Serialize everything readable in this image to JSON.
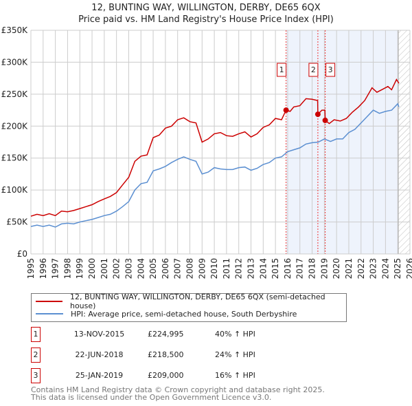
{
  "chart_data": {
    "type": "line",
    "title": "12, BUNTING WAY, WILLINGTON, DERBY, DE65 6QX",
    "subtitle": "Price paid vs. HM Land Registry's House Price Index (HPI)",
    "xlabel": "",
    "ylabel": "",
    "xlim": [
      1995,
      2026
    ],
    "ylim": [
      0,
      350000
    ],
    "yticks": [
      0,
      50000,
      100000,
      150000,
      200000,
      250000,
      300000,
      350000
    ],
    "ytick_labels": [
      "£0",
      "£50K",
      "£100K",
      "£150K",
      "£200K",
      "£250K",
      "£300K",
      "£350K"
    ],
    "xticks": [
      "1995",
      "1996",
      "1997",
      "1998",
      "1999",
      "2000",
      "2001",
      "2002",
      "2003",
      "2004",
      "2005",
      "2006",
      "2007",
      "2008",
      "2009",
      "2010",
      "2011",
      "2012",
      "2013",
      "2014",
      "2015",
      "2016",
      "2017",
      "2018",
      "2019",
      "2020",
      "2021",
      "2022",
      "2023",
      "2024",
      "2025",
      "2026"
    ],
    "grid": true,
    "shaded_range": [
      2015.87,
      2025.05
    ],
    "hatched_range": [
      2025.05,
      2026
    ],
    "series": [
      {
        "name": "12, BUNTING WAY, WILLINGTON, DERBY, DE65 6QX (semi-detached house)",
        "color": "#cc0000",
        "x": [
          1995,
          1995.5,
          1996,
          1996.5,
          1997,
          1997.5,
          1998,
          1998.5,
          1999,
          1999.5,
          2000,
          2000.5,
          2001,
          2001.5,
          2002,
          2002.5,
          2003,
          2003.5,
          2004,
          2004.5,
          2005,
          2005.5,
          2006,
          2006.5,
          2007,
          2007.5,
          2008,
          2008.5,
          2009,
          2009.5,
          2010,
          2010.5,
          2011,
          2011.5,
          2012,
          2012.5,
          2013,
          2013.5,
          2014,
          2014.5,
          2015,
          2015.5,
          2015.87,
          2016.2,
          2016.5,
          2017,
          2017.5,
          2018,
          2018.45,
          2018.47,
          2018.8,
          2019.05,
          2019.07,
          2019.4,
          2019.8,
          2020.3,
          2020.8,
          2021.3,
          2021.8,
          2022.3,
          2022.9,
          2023.3,
          2023.8,
          2024.2,
          2024.5,
          2024.9,
          2025.1
        ],
        "y": [
          59000,
          62000,
          60000,
          63000,
          60000,
          67000,
          66000,
          68000,
          71000,
          74000,
          77000,
          82000,
          86000,
          90000,
          96000,
          108000,
          120000,
          145000,
          153000,
          155000,
          182000,
          186000,
          197000,
          200000,
          210000,
          213000,
          207000,
          205000,
          175000,
          180000,
          188000,
          190000,
          185000,
          184000,
          188000,
          191000,
          183000,
          188000,
          198000,
          202000,
          212000,
          210000,
          224995,
          223000,
          230000,
          232000,
          243000,
          242000,
          240000,
          218500,
          225000,
          225000,
          209000,
          204000,
          210000,
          208000,
          212000,
          222000,
          230000,
          240000,
          260000,
          253000,
          258000,
          262000,
          257000,
          273000,
          267000
        ]
      },
      {
        "name": "HPI: Average price, semi-detached house, South Derbyshire",
        "color": "#5b8fd1",
        "x": [
          1995,
          1995.5,
          1996,
          1996.5,
          1997,
          1997.5,
          1998,
          1998.5,
          1999,
          1999.5,
          2000,
          2000.5,
          2001,
          2001.5,
          2002,
          2002.5,
          2003,
          2003.5,
          2004,
          2004.5,
          2005,
          2005.5,
          2006,
          2006.5,
          2007,
          2007.5,
          2008,
          2008.5,
          2009,
          2009.5,
          2010,
          2010.5,
          2011,
          2011.5,
          2012,
          2012.5,
          2013,
          2013.5,
          2014,
          2014.5,
          2015,
          2015.5,
          2016,
          2016.5,
          2017,
          2017.5,
          2018,
          2018.5,
          2019,
          2019.5,
          2020,
          2020.5,
          2021,
          2021.5,
          2022,
          2022.5,
          2023,
          2023.5,
          2024,
          2024.5,
          2025,
          2025.1
        ],
        "y": [
          43000,
          45000,
          43000,
          45000,
          42000,
          47000,
          48000,
          47000,
          50000,
          52000,
          54000,
          57000,
          60000,
          62000,
          67000,
          74000,
          82000,
          100000,
          110000,
          112000,
          130000,
          133000,
          137000,
          143000,
          148000,
          152000,
          148000,
          145000,
          125000,
          128000,
          135000,
          133000,
          132000,
          132000,
          135000,
          136000,
          131000,
          134000,
          140000,
          143000,
          150000,
          152000,
          160000,
          163000,
          166000,
          172000,
          174000,
          175000,
          180000,
          176000,
          180000,
          180000,
          190000,
          195000,
          205000,
          215000,
          225000,
          220000,
          223000,
          225000,
          235000,
          230000
        ]
      }
    ],
    "annotations": [
      {
        "label": "1",
        "x": 2015.87,
        "y": 224995
      },
      {
        "label": "2",
        "x": 2018.47,
        "y": 218500
      },
      {
        "label": "3",
        "x": 2019.07,
        "y": 209000
      }
    ]
  },
  "title_line1": "12, BUNTING WAY, WILLINGTON, DERBY, DE65 6QX",
  "title_line2": "Price paid vs. HM Land Registry's House Price Index (HPI)",
  "legend": [
    "12, BUNTING WAY, WILLINGTON, DERBY, DE65 6QX (semi-detached house)",
    "HPI: Average price, semi-detached house, South Derbyshire"
  ],
  "transactions": [
    {
      "num": "1",
      "date": "13-NOV-2015",
      "price": "£224,995",
      "hpi": "40% ↑ HPI"
    },
    {
      "num": "2",
      "date": "22-JUN-2018",
      "price": "£218,500",
      "hpi": "24% ↑ HPI"
    },
    {
      "num": "3",
      "date": "25-JAN-2019",
      "price": "£209,000",
      "hpi": "16% ↑ HPI"
    }
  ],
  "footer": [
    "Contains HM Land Registry data © Crown copyright and database right 2025.",
    "This data is licensed under the Open Government Licence v3.0."
  ]
}
